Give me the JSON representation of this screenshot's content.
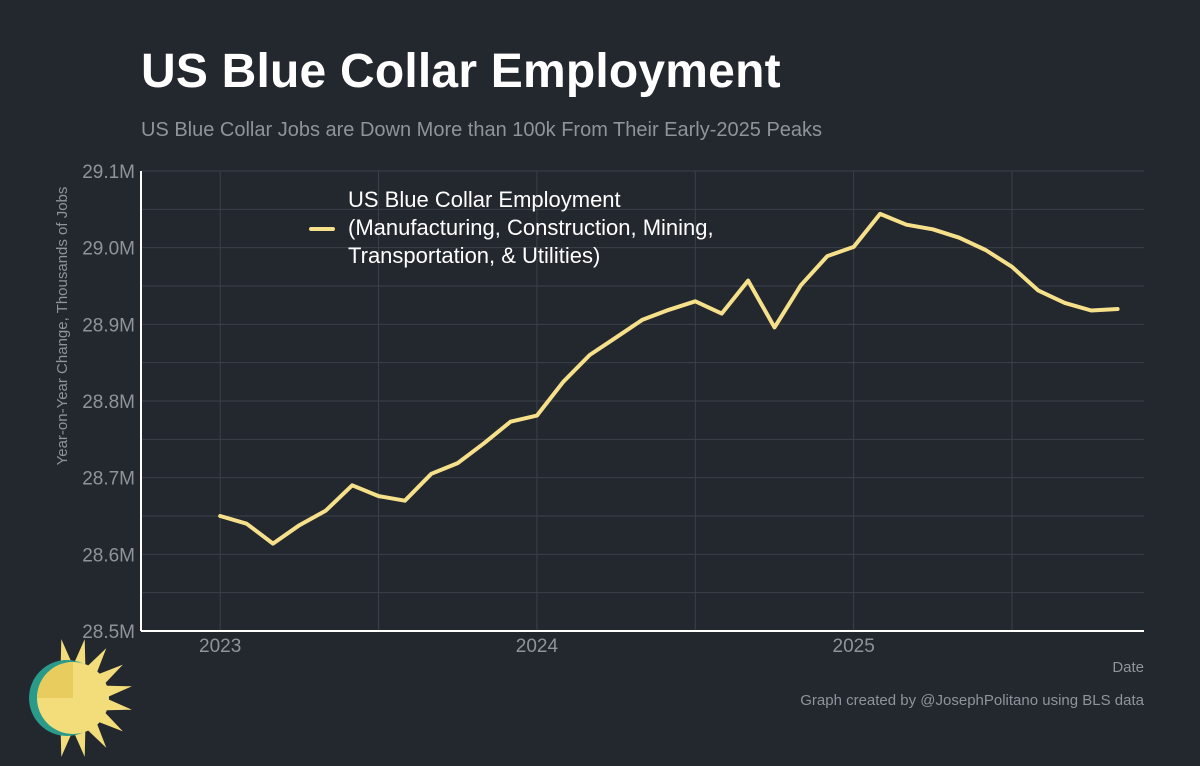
{
  "header": {
    "title": "US Blue Collar Employment",
    "subtitle": "US Blue Collar Jobs are Down More than 100k From Their Early-2025 Peaks"
  },
  "footer": {
    "credit": "Graph created by @JosephPolitano using BLS data"
  },
  "colors": {
    "background": "#23272e",
    "line": "#f6e08a",
    "grid": "#3c4149",
    "axis": "#ffffff",
    "muted_text": "#8f949a",
    "logo_sun": "#f3dc7a",
    "logo_teal": "#2a9a8a"
  },
  "logo": {
    "icon": "sun-logo-icon"
  },
  "chart_data": {
    "type": "line",
    "title": "US Blue Collar Employment",
    "subtitle": "US Blue Collar Jobs are Down More than 100k From Their Early-2025 Peaks",
    "xlabel": "Date",
    "ylabel": "Year-on-Year Change, Thousands of Jobs",
    "ylim": [
      28500,
      29100
    ],
    "y_ticks": [
      28500,
      28600,
      28700,
      28800,
      28900,
      29000,
      29100
    ],
    "y_tick_labels": [
      "28.5M",
      "28.6M",
      "28.7M",
      "28.8M",
      "28.9M",
      "29.0M",
      "29.1M"
    ],
    "x_ticks": [
      "2023",
      "2024",
      "2025"
    ],
    "xlim": [
      "2022-10",
      "2025-12"
    ],
    "grid": true,
    "legend_position": "top-left",
    "series": [
      {
        "name": "US Blue Collar Employment\n(Manufacturing, Construction, Mining,\nTransportation, & Utilities)",
        "x": [
          "2023-01",
          "2023-02",
          "2023-03",
          "2023-04",
          "2023-05",
          "2023-06",
          "2023-07",
          "2023-08",
          "2023-09",
          "2023-10",
          "2023-11",
          "2023-12",
          "2024-01",
          "2024-02",
          "2024-03",
          "2024-04",
          "2024-05",
          "2024-06",
          "2024-07",
          "2024-08",
          "2024-09",
          "2024-10",
          "2024-11",
          "2024-12",
          "2025-01",
          "2025-02",
          "2025-03",
          "2025-04",
          "2025-05",
          "2025-06",
          "2025-07",
          "2025-08",
          "2025-09",
          "2025-10",
          "2025-11"
        ],
        "values": [
          28650,
          28640,
          28614,
          28638,
          28657,
          28690,
          28676,
          28670,
          28705,
          28719,
          28745,
          28773,
          28781,
          28825,
          28860,
          28883,
          28906,
          28919,
          28930,
          28914,
          28957,
          28896,
          28951,
          28989,
          29001,
          29044,
          29030,
          29024,
          29013,
          28997,
          28975,
          28944,
          28928,
          28918,
          28920
        ]
      }
    ]
  }
}
